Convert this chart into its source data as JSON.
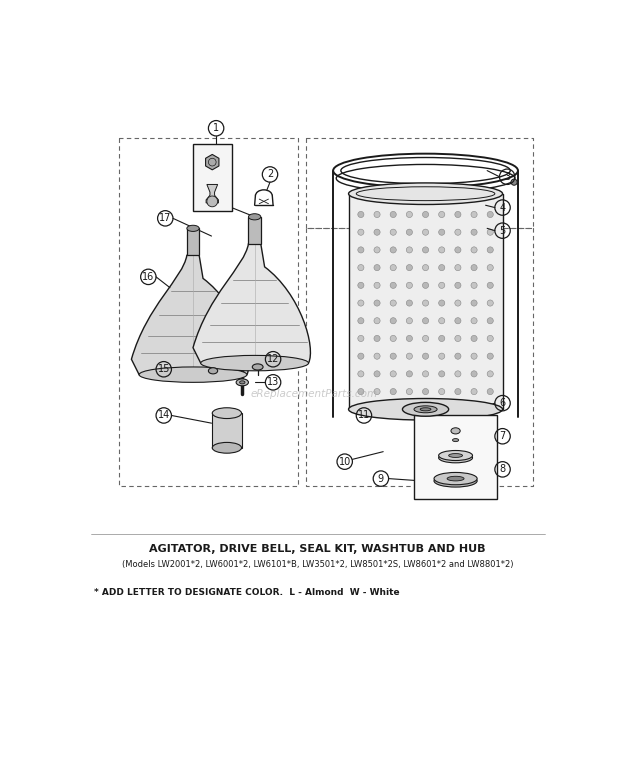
{
  "title": "AGITATOR, DRIVE BELL, SEAL KIT, WASHTUB AND HUB",
  "subtitle": "(Models LW2001*2, LW6001*2, LW6101*B, LW3501*2, LW8501*2S, LW8601*2 and LW8801*2)",
  "footnote": "* ADD LETTER TO DESIGNATE COLOR.  L - Almond  W - White",
  "bg_color": "#ffffff",
  "watermark": "eReplacementParts.com"
}
